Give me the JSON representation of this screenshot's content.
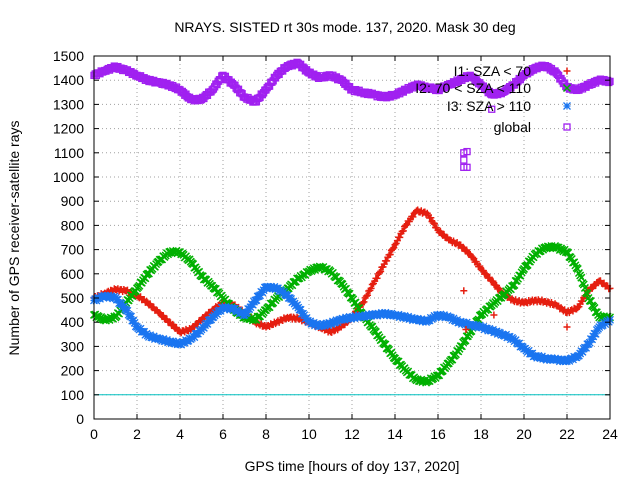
{
  "chart_data": {
    "type": "scatter",
    "title": "NRAYS. SISTED rt 30s mode. 137, 2020. Mask 30 deg",
    "xlabel": "GPS time [hours of doy 137, 2020]",
    "ylabel": "Number of GPS receiver-satellite rays",
    "xlim": [
      0,
      24
    ],
    "ylim": [
      0,
      1500
    ],
    "xticks": [
      0,
      2,
      4,
      6,
      8,
      10,
      12,
      14,
      16,
      18,
      20,
      22,
      24
    ],
    "yticks": [
      0,
      100,
      200,
      300,
      400,
      500,
      600,
      700,
      800,
      900,
      1000,
      1100,
      1200,
      1300,
      1400,
      1500
    ],
    "grid": true,
    "legend_position": "top-right",
    "reference_line": {
      "y": 100,
      "color": "#00c0c0"
    },
    "series": [
      {
        "name": "I1: SZA < 70",
        "color": "#e51e10",
        "marker": "plus",
        "x": [
          0,
          0.5,
          1,
          1.5,
          2,
          2.5,
          3,
          3.5,
          4,
          4.5,
          5,
          5.5,
          6,
          6.5,
          7,
          7.5,
          8,
          8.5,
          9,
          9.5,
          10,
          10.5,
          11,
          11.5,
          12,
          12.5,
          13,
          13.5,
          14,
          14.5,
          15,
          15.5,
          16,
          16.5,
          17,
          17.5,
          18,
          18.5,
          19,
          19.5,
          20,
          20.5,
          21,
          21.5,
          22,
          22.5,
          23,
          23.5,
          24
        ],
        "values": [
          500,
          520,
          535,
          530,
          510,
          480,
          440,
          400,
          360,
          370,
          410,
          450,
          480,
          470,
          440,
          400,
          380,
          400,
          420,
          415,
          400,
          380,
          360,
          380,
          420,
          480,
          560,
          640,
          720,
          800,
          860,
          850,
          780,
          740,
          720,
          680,
          620,
          570,
          520,
          490,
          480,
          490,
          485,
          470,
          440,
          460,
          530,
          570,
          540
        ]
      },
      {
        "name": "I2: 70 < SZA < 110",
        "color": "#00b000",
        "marker": "cross",
        "x": [
          0,
          0.5,
          1,
          1.5,
          2,
          2.5,
          3,
          3.5,
          4,
          4.5,
          5,
          5.5,
          6,
          6.5,
          7,
          7.5,
          8,
          8.5,
          9,
          9.5,
          10,
          10.5,
          11,
          11.5,
          12,
          12.5,
          13,
          13.5,
          14,
          14.5,
          15,
          15.5,
          16,
          16.5,
          17,
          17.5,
          18,
          18.5,
          19,
          19.5,
          20,
          20.5,
          21,
          21.5,
          22,
          22.5,
          23,
          23.5,
          24
        ],
        "values": [
          430,
          410,
          420,
          480,
          540,
          600,
          650,
          690,
          690,
          650,
          590,
          550,
          500,
          450,
          420,
          410,
          450,
          500,
          540,
          580,
          610,
          630,
          610,
          560,
          500,
          430,
          370,
          310,
          250,
          200,
          160,
          155,
          180,
          230,
          290,
          360,
          430,
          470,
          510,
          550,
          620,
          680,
          710,
          710,
          690,
          620,
          500,
          420,
          420
        ]
      },
      {
        "name": "I3: SZA > 110",
        "color": "#1a75f0",
        "marker": "star",
        "x": [
          0,
          0.5,
          1,
          1.5,
          2,
          2.5,
          3,
          3.5,
          4,
          4.5,
          5,
          5.5,
          6,
          6.5,
          7,
          7.5,
          8,
          8.5,
          9,
          9.5,
          10,
          10.5,
          11,
          11.5,
          12,
          12.5,
          13,
          13.5,
          14,
          14.5,
          15,
          15.5,
          16,
          16.5,
          17,
          17.5,
          18,
          18.5,
          19,
          19.5,
          20,
          20.5,
          21,
          21.5,
          22,
          22.5,
          23,
          23.5,
          24
        ],
        "values": [
          490,
          510,
          500,
          450,
          380,
          345,
          330,
          320,
          310,
          330,
          370,
          420,
          460,
          455,
          430,
          490,
          545,
          540,
          510,
          460,
          400,
          385,
          395,
          410,
          420,
          425,
          430,
          435,
          430,
          420,
          410,
          405,
          430,
          420,
          400,
          390,
          380,
          365,
          350,
          330,
          290,
          260,
          250,
          245,
          240,
          260,
          310,
          380,
          410
        ]
      },
      {
        "name": "global",
        "color": "#a020f0",
        "marker": "square",
        "x": [
          0,
          0.5,
          1,
          1.5,
          2,
          2.5,
          3,
          3.5,
          4,
          4.5,
          5,
          5.5,
          6,
          6.5,
          7,
          7.5,
          8,
          8.5,
          9,
          9.5,
          10,
          10.5,
          11,
          11.5,
          12,
          12.5,
          13,
          13.5,
          14,
          14.5,
          15,
          15.5,
          16,
          16.5,
          17,
          17.5,
          18,
          18.5,
          19,
          19.5,
          20,
          20.5,
          21,
          21.5,
          22,
          22.5,
          23,
          23.5,
          24
        ],
        "values": [
          1420,
          1440,
          1455,
          1440,
          1420,
          1400,
          1390,
          1380,
          1360,
          1320,
          1320,
          1360,
          1420,
          1380,
          1330,
          1310,
          1360,
          1420,
          1460,
          1470,
          1430,
          1410,
          1420,
          1400,
          1360,
          1350,
          1340,
          1330,
          1340,
          1360,
          1380,
          1370,
          1360,
          1380,
          1400,
          1420,
          1380,
          1340,
          1350,
          1380,
          1420,
          1450,
          1460,
          1430,
          1370,
          1360,
          1380,
          1400,
          1395
        ]
      }
    ],
    "outliers": [
      {
        "series": "I1: SZA < 70",
        "x": 17.2,
        "y": 530
      },
      {
        "series": "I1: SZA < 70",
        "x": 17.3,
        "y": 370
      },
      {
        "series": "I1: SZA < 70",
        "x": 18.6,
        "y": 430
      },
      {
        "series": "I1: SZA < 70",
        "x": 22.0,
        "y": 380
      },
      {
        "series": "global",
        "x": 17.2,
        "y": 1100
      },
      {
        "series": "global",
        "x": 17.35,
        "y": 1105
      },
      {
        "series": "global",
        "x": 17.2,
        "y": 1070
      },
      {
        "series": "global",
        "x": 17.35,
        "y": 1040
      },
      {
        "series": "global",
        "x": 17.2,
        "y": 1040
      },
      {
        "series": "global",
        "x": 18.5,
        "y": 1280
      }
    ]
  }
}
